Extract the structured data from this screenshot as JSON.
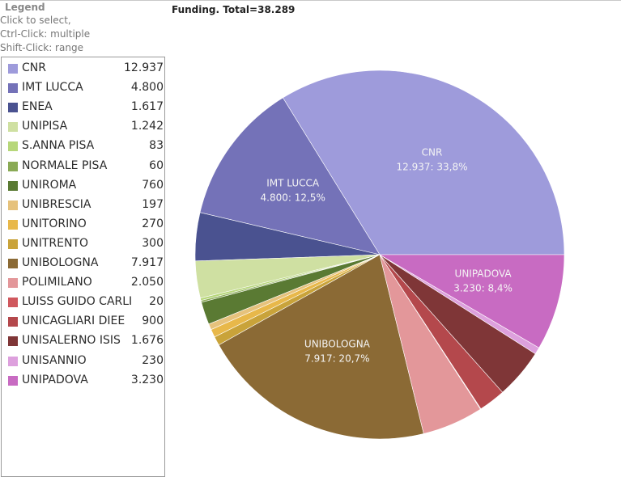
{
  "legend": {
    "title": "Legend",
    "hint_select": "Click to select,",
    "hint_multiple": "Ctrl-Click: multiple",
    "hint_range": "Shift-Click: range"
  },
  "chart_data": {
    "type": "pie",
    "title": "Funding. Total=38.289",
    "slices": [
      {
        "label": "CNR",
        "value_text": "12.937",
        "value": 12937,
        "color": "#9e9bdb",
        "slice_label": "CNR",
        "slice_value": "12.937:  33,8%"
      },
      {
        "label": "IMT LUCCA",
        "value_text": "4.800",
        "value": 4800,
        "color": "#7472b8",
        "slice_label": "IMT LUCCA",
        "slice_value": "4.800:  12,5%"
      },
      {
        "label": "ENEA",
        "value_text": "1.617",
        "value": 1617,
        "color": "#4a5290",
        "slice_label": "",
        "slice_value": ""
      },
      {
        "label": "UNIPISA",
        "value_text": "1.242",
        "value": 1242,
        "color": "#cfe0a2",
        "slice_label": "",
        "slice_value": ""
      },
      {
        "label": "S.ANNA PISA",
        "value_text": "83",
        "value": 83,
        "color": "#b7d77a",
        "slice_label": "",
        "slice_value": ""
      },
      {
        "label": "NORMALE PISA",
        "value_text": "60",
        "value": 60,
        "color": "#8aaa55",
        "slice_label": "",
        "slice_value": ""
      },
      {
        "label": "UNIROMA",
        "value_text": "760",
        "value": 760,
        "color": "#5a7a33",
        "slice_label": "",
        "slice_value": ""
      },
      {
        "label": "UNIBRESCIA",
        "value_text": "197",
        "value": 197,
        "color": "#e6c27c",
        "slice_label": "",
        "slice_value": ""
      },
      {
        "label": "UNITORINO",
        "value_text": "270",
        "value": 270,
        "color": "#e8b84a",
        "slice_label": "",
        "slice_value": ""
      },
      {
        "label": "UNITRENTO",
        "value_text": "300",
        "value": 300,
        "color": "#c9a33a",
        "slice_label": "",
        "slice_value": ""
      },
      {
        "label": "UNIBOLOGNA",
        "value_text": "7.917",
        "value": 7917,
        "color": "#8b6a35",
        "slice_label": "UNIBOLOGNA",
        "slice_value": "7.917:  20,7%"
      },
      {
        "label": "POLIMILANO",
        "value_text": "2.050",
        "value": 2050,
        "color": "#e3979a",
        "slice_label": "",
        "slice_value": ""
      },
      {
        "label": "LUISS GUIDO CARLI",
        "value_text": "20",
        "value": 20,
        "color": "#d0585e",
        "slice_label": "",
        "slice_value": ""
      },
      {
        "label": "UNICAGLIARI DIEE",
        "value_text": "900",
        "value": 900,
        "color": "#b4484c",
        "slice_label": "",
        "slice_value": ""
      },
      {
        "label": "UNISALERNO ISIS",
        "value_text": "1.676",
        "value": 1676,
        "color": "#7f3637",
        "slice_label": "",
        "slice_value": ""
      },
      {
        "label": "UNISANNIO",
        "value_text": "230",
        "value": 230,
        "color": "#dda0dd",
        "slice_label": "",
        "slice_value": ""
      },
      {
        "label": "UNIPADOVA",
        "value_text": "3.230",
        "value": 3230,
        "color": "#c86bc2",
        "slice_label": "UNIPADOVA",
        "slice_value": "3.230:  8,4%"
      }
    ]
  }
}
